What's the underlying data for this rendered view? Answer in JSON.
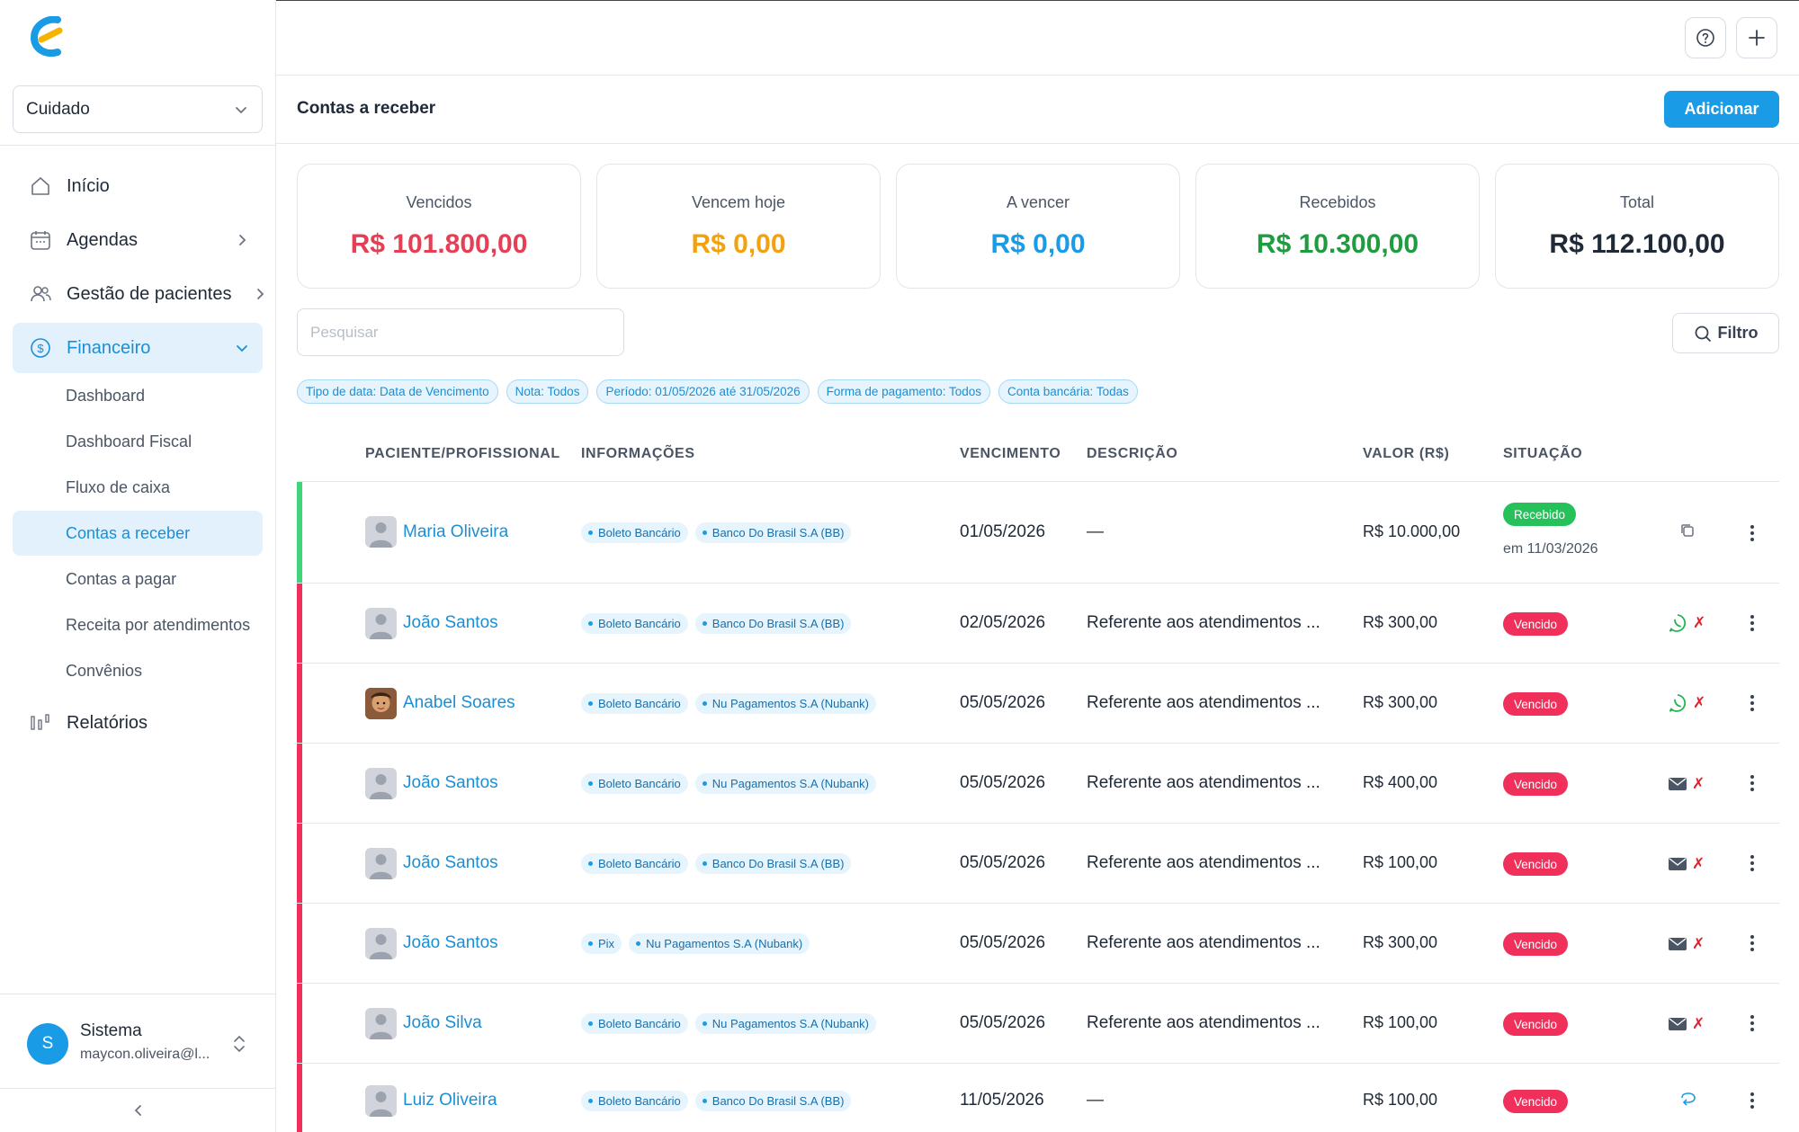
{
  "colors": {
    "accent": "#1a9be6",
    "overdue": "#e63e54",
    "due_today": "#f2a20f",
    "upcoming": "#1a9be6",
    "received": "#1e9c3f",
    "total": "#1f2937"
  },
  "sidebar": {
    "org_select": "Cuidado",
    "nav": [
      {
        "label": "Início",
        "icon": "home-icon"
      },
      {
        "label": "Agendas",
        "icon": "calendar-icon"
      },
      {
        "label": "Gestão de pacientes",
        "icon": "users-icon"
      },
      {
        "label": "Financeiro",
        "icon": "dollar-circle-icon"
      },
      {
        "label": "Relatórios",
        "icon": "bar-chart-icon"
      }
    ],
    "financeiro_sub": [
      {
        "label": "Dashboard"
      },
      {
        "label": "Dashboard Fiscal"
      },
      {
        "label": "Fluxo de caixa"
      },
      {
        "label": "Contas a receber"
      },
      {
        "label": "Contas a pagar"
      },
      {
        "label": "Receita por atendimentos"
      },
      {
        "label": "Convênios"
      }
    ],
    "user": {
      "initial": "S",
      "name": "Sistema",
      "email": "maycon.oliveira@l..."
    }
  },
  "header": {
    "title": "Contas a receber",
    "add_label": "Adicionar"
  },
  "summary": [
    {
      "label": "Vencidos",
      "value": "R$ 101.800,00"
    },
    {
      "label": "Vencem hoje",
      "value": "R$ 0,00"
    },
    {
      "label": "A vencer",
      "value": "R$ 0,00"
    },
    {
      "label": "Recebidos",
      "value": "R$ 10.300,00"
    },
    {
      "label": "Total",
      "value": "R$ 112.100,00"
    }
  ],
  "search": {
    "placeholder": "Pesquisar"
  },
  "filter_label": "Filtro",
  "chips": [
    "Tipo de data: Data de Vencimento",
    "Nota: Todos",
    "Período: 01/05/2026 até 31/05/2026",
    "Forma de pagamento: Todos",
    "Conta bancária: Todas"
  ],
  "table": {
    "columns": [
      "PACIENTE/PROFISSIONAL",
      "INFORMAÇÕES",
      "VENCIMENTO",
      "DESCRIÇÃO",
      "VALOR (R$)",
      "SITUAÇÃO"
    ],
    "rows": [
      {
        "name": "Maria Oliveira",
        "method": "Boleto Bancário",
        "bank": "Banco Do Brasil S.A (BB)",
        "due": "01/05/2026",
        "description": "—",
        "amount": "R$ 10.000,00",
        "status": "Recebido",
        "status_date": "em 11/03/2026",
        "action_icon": "copy-icon"
      },
      {
        "name": "João Santos",
        "method": "Boleto Bancário",
        "bank": "Banco Do Brasil S.A (BB)",
        "due": "02/05/2026",
        "description": "Referente aos atendimentos ...",
        "amount": "R$ 300,00",
        "status": "Vencido",
        "action_icon": "whatsapp-icon"
      },
      {
        "name": "Anabel Soares",
        "method": "Boleto Bancário",
        "bank": "Nu Pagamentos S.A (Nubank)",
        "due": "05/05/2026",
        "description": "Referente aos atendimentos ...",
        "amount": "R$ 300,00",
        "status": "Vencido",
        "action_icon": "whatsapp-icon"
      },
      {
        "name": "João Santos",
        "method": "Boleto Bancário",
        "bank": "Nu Pagamentos S.A (Nubank)",
        "due": "05/05/2026",
        "description": "Referente aos atendimentos ...",
        "amount": "R$ 400,00",
        "status": "Vencido",
        "action_icon": "mail-icon"
      },
      {
        "name": "João Santos",
        "method": "Boleto Bancário",
        "bank": "Banco Do Brasil S.A (BB)",
        "due": "05/05/2026",
        "description": "Referente aos atendimentos ...",
        "amount": "R$ 100,00",
        "status": "Vencido",
        "action_icon": "mail-icon"
      },
      {
        "name": "João Santos",
        "method": "Pix",
        "bank": "Nu Pagamentos S.A (Nubank)",
        "due": "05/05/2026",
        "description": "Referente aos atendimentos ...",
        "amount": "R$ 300,00",
        "status": "Vencido",
        "action_icon": "mail-icon"
      },
      {
        "name": "João Silva",
        "method": "Boleto Bancário",
        "bank": "Nu Pagamentos S.A (Nubank)",
        "due": "05/05/2026",
        "description": "Referente aos atendimentos ...",
        "amount": "R$ 100,00",
        "status": "Vencido",
        "action_icon": "mail-icon"
      },
      {
        "name": "Luiz Oliveira",
        "method": "Boleto Bancário",
        "bank": "Banco Do Brasil S.A (BB)",
        "due": "11/05/2026",
        "description": "—",
        "amount": "R$ 100,00",
        "status": "Vencido",
        "action_icon": "refresh-icon"
      }
    ]
  }
}
